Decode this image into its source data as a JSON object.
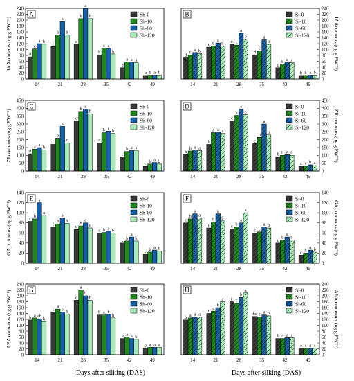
{
  "x_title": "Days after silking (DAS)",
  "colors": {
    "c0": "#3a3a3a",
    "c10": "#1e8a1e",
    "c60": "#1560a8",
    "c120": "#a8ecb8"
  },
  "chart_data": [
    {
      "type": "bar",
      "panel": "A",
      "hatched": false,
      "categories": [
        "14",
        "21",
        "28",
        "35",
        "42",
        "49"
      ],
      "ylabel": "IAAcontents (ng g FW⁻¹)",
      "ylabel_side": "left",
      "ylim": [
        0,
        240
      ],
      "yticks": [
        0,
        20,
        40,
        60,
        80,
        100,
        120,
        140,
        160,
        180,
        200,
        220,
        240
      ],
      "legend": "top-right",
      "series": [
        {
          "name": "Sh-0",
          "values": [
            75,
            110,
            118,
            82,
            38,
            12
          ],
          "labels": [
            "d",
            "c",
            "c",
            "b",
            "b",
            "b"
          ]
        },
        {
          "name": "Sh-10",
          "values": [
            102,
            150,
            205,
            105,
            58,
            13
          ],
          "labels": [
            "c",
            "b",
            "b",
            "a",
            "a",
            "b"
          ]
        },
        {
          "name": "Sh-60",
          "values": [
            120,
            195,
            240,
            104,
            57,
            13
          ],
          "labels": [
            "a",
            "a",
            "a",
            "a",
            "a",
            "a"
          ]
        },
        {
          "name": "Sh-120",
          "values": [
            118,
            150,
            205,
            85,
            55,
            13
          ],
          "labels": [
            "b",
            "b",
            "b",
            "b",
            "a",
            "b"
          ]
        }
      ]
    },
    {
      "type": "bar",
      "panel": "B",
      "hatched": true,
      "categories": [
        "14",
        "21",
        "28",
        "35",
        "42",
        "49"
      ],
      "ylabel": "IAAcontents (ng g FW⁻¹)",
      "ylabel_side": "right",
      "ylim": [
        0,
        240
      ],
      "yticks": [
        0,
        20,
        40,
        60,
        80,
        100,
        120,
        140,
        160,
        180,
        200,
        220,
        240
      ],
      "legend": "top-right",
      "series": [
        {
          "name": "Si-0",
          "values": [
            72,
            108,
            118,
            82,
            38,
            12
          ],
          "labels": [
            "d",
            "c",
            "c",
            "d",
            "c",
            "b"
          ]
        },
        {
          "name": "Si-10",
          "values": [
            82,
            112,
            115,
            95,
            50,
            12
          ],
          "labels": [
            "c",
            "b",
            "c",
            "c",
            "b",
            "b"
          ]
        },
        {
          "name": "Si-60",
          "values": [
            90,
            122,
            155,
            133,
            57,
            13
          ],
          "labels": [
            "a",
            "a",
            "a",
            "a",
            "a",
            "a"
          ]
        },
        {
          "name": "Si-120",
          "values": [
            86,
            112,
            135,
            118,
            55,
            13
          ],
          "labels": [
            "b",
            "b",
            "b",
            "b",
            "a",
            "b"
          ]
        }
      ]
    },
    {
      "type": "bar",
      "panel": "C",
      "hatched": false,
      "categories": [
        "14",
        "21",
        "28",
        "35",
        "42",
        "49"
      ],
      "ylabel": "ZRcontentes (ng g FW⁻¹)",
      "ylabel_side": "left",
      "ylim": [
        0,
        450
      ],
      "yticks": [
        0,
        50,
        100,
        150,
        200,
        250,
        300,
        350,
        400,
        450
      ],
      "legend": "top-right",
      "series": [
        {
          "name": "Sh-0",
          "values": [
            110,
            170,
            320,
            180,
            90,
            30
          ],
          "labels": [
            "d",
            "c",
            "c",
            "c",
            "c",
            "c"
          ]
        },
        {
          "name": "Sh-10",
          "values": [
            140,
            210,
            380,
            245,
            125,
            45
          ],
          "labels": [
            "a",
            "b",
            "b",
            "b",
            "b",
            "b"
          ]
        },
        {
          "name": "Sh-60",
          "values": [
            150,
            285,
            395,
            255,
            132,
            55
          ],
          "labels": [
            "a",
            "a",
            "a",
            "a",
            "a",
            "a"
          ]
        },
        {
          "name": "Sh-120",
          "values": [
            135,
            180,
            365,
            240,
            132,
            45
          ],
          "labels": [
            "b",
            "c",
            "b",
            "b",
            "a",
            "b"
          ]
        }
      ]
    },
    {
      "type": "bar",
      "panel": "D",
      "hatched": true,
      "categories": [
        "14",
        "21",
        "28",
        "35",
        "42",
        "49"
      ],
      "ylabel": "ZRcontentes (ng g FW⁻¹)",
      "ylabel_side": "right",
      "ylim": [
        0,
        450
      ],
      "yticks": [
        0,
        50,
        100,
        150,
        200,
        250,
        300,
        350,
        400,
        450
      ],
      "legend": "top-right",
      "series": [
        {
          "name": "Si-0",
          "values": [
            105,
            170,
            320,
            175,
            90,
            30
          ],
          "labels": [
            "b",
            "b",
            "c",
            "c",
            "b",
            "c"
          ]
        },
        {
          "name": "Si-10",
          "values": [
            128,
            245,
            355,
            215,
            100,
            32
          ],
          "labels": [
            "b",
            "a",
            "b",
            "b",
            "b",
            "c"
          ]
        },
        {
          "name": "Si-60",
          "values": [
            135,
            250,
            395,
            300,
            105,
            40
          ],
          "labels": [
            "a",
            "a",
            "a",
            "a",
            "a",
            "b"
          ]
        },
        {
          "name": "Si-120",
          "values": [
            130,
            240,
            360,
            230,
            100,
            35
          ],
          "labels": [
            "a",
            "a",
            "b",
            "b",
            "b",
            "a"
          ]
        }
      ]
    },
    {
      "type": "bar",
      "panel": "E",
      "hatched": false,
      "categories": [
        "14",
        "21",
        "28",
        "35",
        "42",
        "49"
      ],
      "ylabel": "GA₃ contents (ng g FW⁻¹)",
      "ylabel_side": "left",
      "ylim": [
        0,
        140
      ],
      "yticks": [
        0,
        20,
        40,
        60,
        80,
        100,
        120,
        140
      ],
      "legend": "top-right",
      "series": [
        {
          "name": "Sh-0",
          "values": [
            83,
            72,
            67,
            60,
            40,
            18
          ],
          "labels": [
            "c",
            "c",
            "c",
            "c",
            "c",
            "c"
          ]
        },
        {
          "name": "Sh-10",
          "values": [
            88,
            78,
            74,
            61,
            44,
            22
          ],
          "labels": [
            "b",
            "b",
            "b",
            "b",
            "b",
            "b"
          ]
        },
        {
          "name": "Sh-60",
          "values": [
            120,
            90,
            80,
            64,
            52,
            26
          ],
          "labels": [
            "a",
            "a",
            "a",
            "a",
            "a",
            "a"
          ]
        },
        {
          "name": "Sh-120",
          "values": [
            95,
            79,
            70,
            60,
            44,
            24
          ],
          "labels": [
            "a",
            "b",
            "c",
            "b",
            "b",
            "b"
          ]
        }
      ]
    },
    {
      "type": "bar",
      "panel": "F",
      "hatched": true,
      "categories": [
        "14",
        "21",
        "28",
        "35",
        "42",
        "49"
      ],
      "ylabel": "GA₃ contents (ng g FW⁻¹)",
      "ylabel_side": "right",
      "ylim": [
        0,
        140
      ],
      "yticks": [
        0,
        20,
        40,
        60,
        80,
        100,
        120,
        140
      ],
      "legend": "top-right",
      "series": [
        {
          "name": "Si-0",
          "values": [
            80,
            70,
            68,
            60,
            40,
            16
          ],
          "labels": [
            "c",
            "c",
            "c",
            "c",
            "c",
            "c"
          ]
        },
        {
          "name": "Si-10",
          "values": [
            88,
            82,
            72,
            62,
            46,
            20
          ],
          "labels": [
            "b",
            "b",
            "b",
            "c",
            "b",
            "b"
          ]
        },
        {
          "name": "Si-60",
          "values": [
            98,
            98,
            80,
            72,
            52,
            26
          ],
          "labels": [
            "a",
            "a",
            "a",
            "a",
            "a",
            "a"
          ]
        },
        {
          "name": "Si-120",
          "values": [
            90,
            84,
            100,
            70,
            46,
            22
          ],
          "labels": [
            "a",
            "b",
            "a",
            "b",
            "b",
            "b"
          ]
        }
      ]
    },
    {
      "type": "bar",
      "panel": "G",
      "hatched": false,
      "categories": [
        "14",
        "21",
        "28",
        "35",
        "42",
        "49"
      ],
      "ylabel": "ABA contentes (ng g FW⁻¹)",
      "ylabel_side": "left",
      "ylim": [
        0,
        240
      ],
      "yticks": [
        0,
        20,
        40,
        60,
        80,
        100,
        120,
        140,
        160,
        180,
        200,
        220,
        240
      ],
      "legend": "top-right",
      "series": [
        {
          "name": "Sh-0",
          "values": [
            118,
            145,
            185,
            135,
            55,
            22
          ],
          "labels": [
            "b",
            "c",
            "c",
            "b",
            "b",
            "b"
          ]
        },
        {
          "name": "Sh-10",
          "values": [
            125,
            155,
            220,
            135,
            60,
            25
          ],
          "labels": [
            "a",
            "a",
            "a",
            "a",
            "a",
            "a"
          ]
        },
        {
          "name": "Sh-60",
          "values": [
            122,
            145,
            200,
            137,
            55,
            25
          ],
          "labels": [
            "ab",
            "b",
            "b",
            "b",
            "a",
            "a"
          ]
        },
        {
          "name": "Sh-120",
          "values": [
            112,
            138,
            185,
            125,
            52,
            25
          ],
          "labels": [
            "b",
            "b",
            "b",
            "b",
            "b",
            "a"
          ]
        }
      ]
    },
    {
      "type": "bar",
      "panel": "H",
      "hatched": true,
      "categories": [
        "14",
        "21",
        "28",
        "35",
        "42",
        "49"
      ],
      "ylabel": "ABA contentes (ng g FW⁻¹)",
      "ylabel_side": "right",
      "ylim": [
        0,
        240
      ],
      "yticks": [
        0,
        20,
        40,
        60,
        80,
        100,
        120,
        140,
        160,
        180,
        200,
        220,
        240
      ],
      "legend": "top-right",
      "series": [
        {
          "name": "Si-0",
          "values": [
            118,
            140,
            180,
            130,
            55,
            22
          ],
          "labels": [
            "b",
            "c",
            "c",
            "bc",
            "b",
            "a"
          ]
        },
        {
          "name": "Si-10",
          "values": [
            125,
            148,
            175,
            128,
            55,
            22
          ],
          "labels": [
            "a",
            "c",
            "c",
            "c",
            "a",
            "a"
          ]
        },
        {
          "name": "Si-60",
          "values": [
            128,
            160,
            195,
            135,
            58,
            22
          ],
          "labels": [
            "a",
            "b",
            "b",
            "a",
            "a",
            "a"
          ]
        },
        {
          "name": "Si-120",
          "values": [
            128,
            180,
            210,
            132,
            58,
            22
          ],
          "labels": [
            "a",
            "a",
            "a",
            "b",
            "a",
            "a"
          ]
        }
      ]
    }
  ]
}
